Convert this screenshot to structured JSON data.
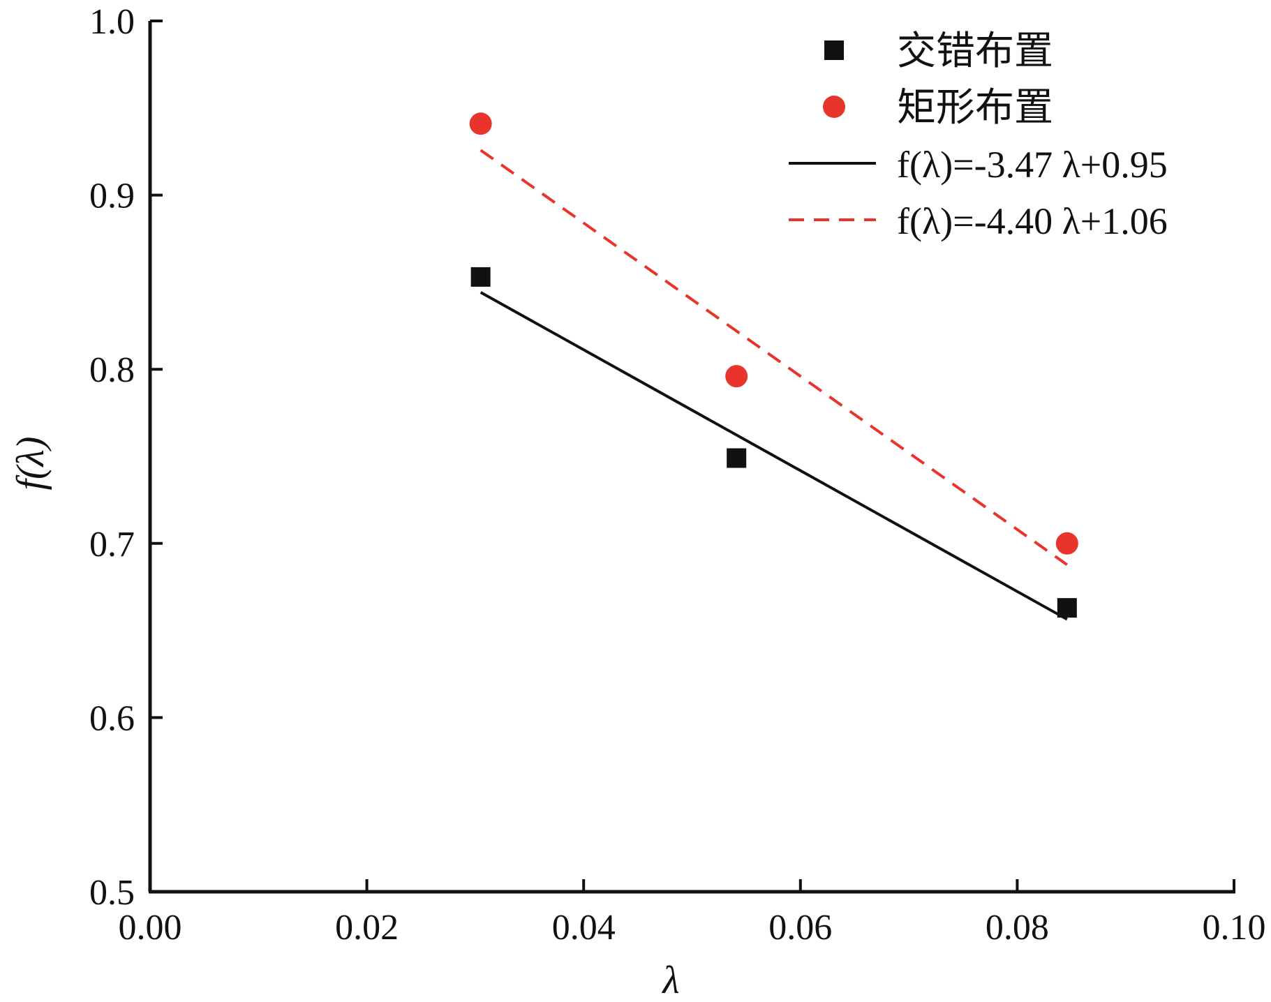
{
  "chart_data": {
    "type": "scatter",
    "title": "",
    "xlabel": "λ",
    "ylabel": "f(λ)",
    "xlim": [
      0.0,
      0.1
    ],
    "ylim": [
      0.5,
      1.0
    ],
    "xticks": [
      "0.00",
      "0.02",
      "0.04",
      "0.06",
      "0.08",
      "0.10"
    ],
    "yticks": [
      "0.5",
      "0.6",
      "0.7",
      "0.8",
      "0.9",
      "1.0"
    ],
    "grid": false,
    "legend_position": "top-right",
    "series": [
      {
        "name": "交错布置",
        "marker": "square",
        "color": "#111111",
        "x": [
          0.0305,
          0.0541,
          0.0846
        ],
        "y": [
          0.853,
          0.749,
          0.663
        ]
      },
      {
        "name": "矩形布置",
        "marker": "circle",
        "color": "#e8342b",
        "x": [
          0.0305,
          0.0541,
          0.0846
        ],
        "y": [
          0.941,
          0.796,
          0.7
        ]
      }
    ],
    "fits": [
      {
        "name": "f(λ)=-3.47 λ+0.95",
        "slope": -3.47,
        "intercept": 0.95,
        "x_range": [
          0.0305,
          0.0846
        ],
        "color": "#111111",
        "dash": "solid"
      },
      {
        "name": "f(λ)=-4.40 λ+1.06",
        "slope": -4.4,
        "intercept": 1.06,
        "x_range": [
          0.0305,
          0.0846
        ],
        "color": "#e8342b",
        "dash": "dashed"
      }
    ]
  },
  "legend": {
    "items": [
      "交错布置",
      "矩形布置",
      "f(λ)=-3.47 λ+0.95",
      "f(λ)=-4.40 λ+1.06"
    ]
  }
}
